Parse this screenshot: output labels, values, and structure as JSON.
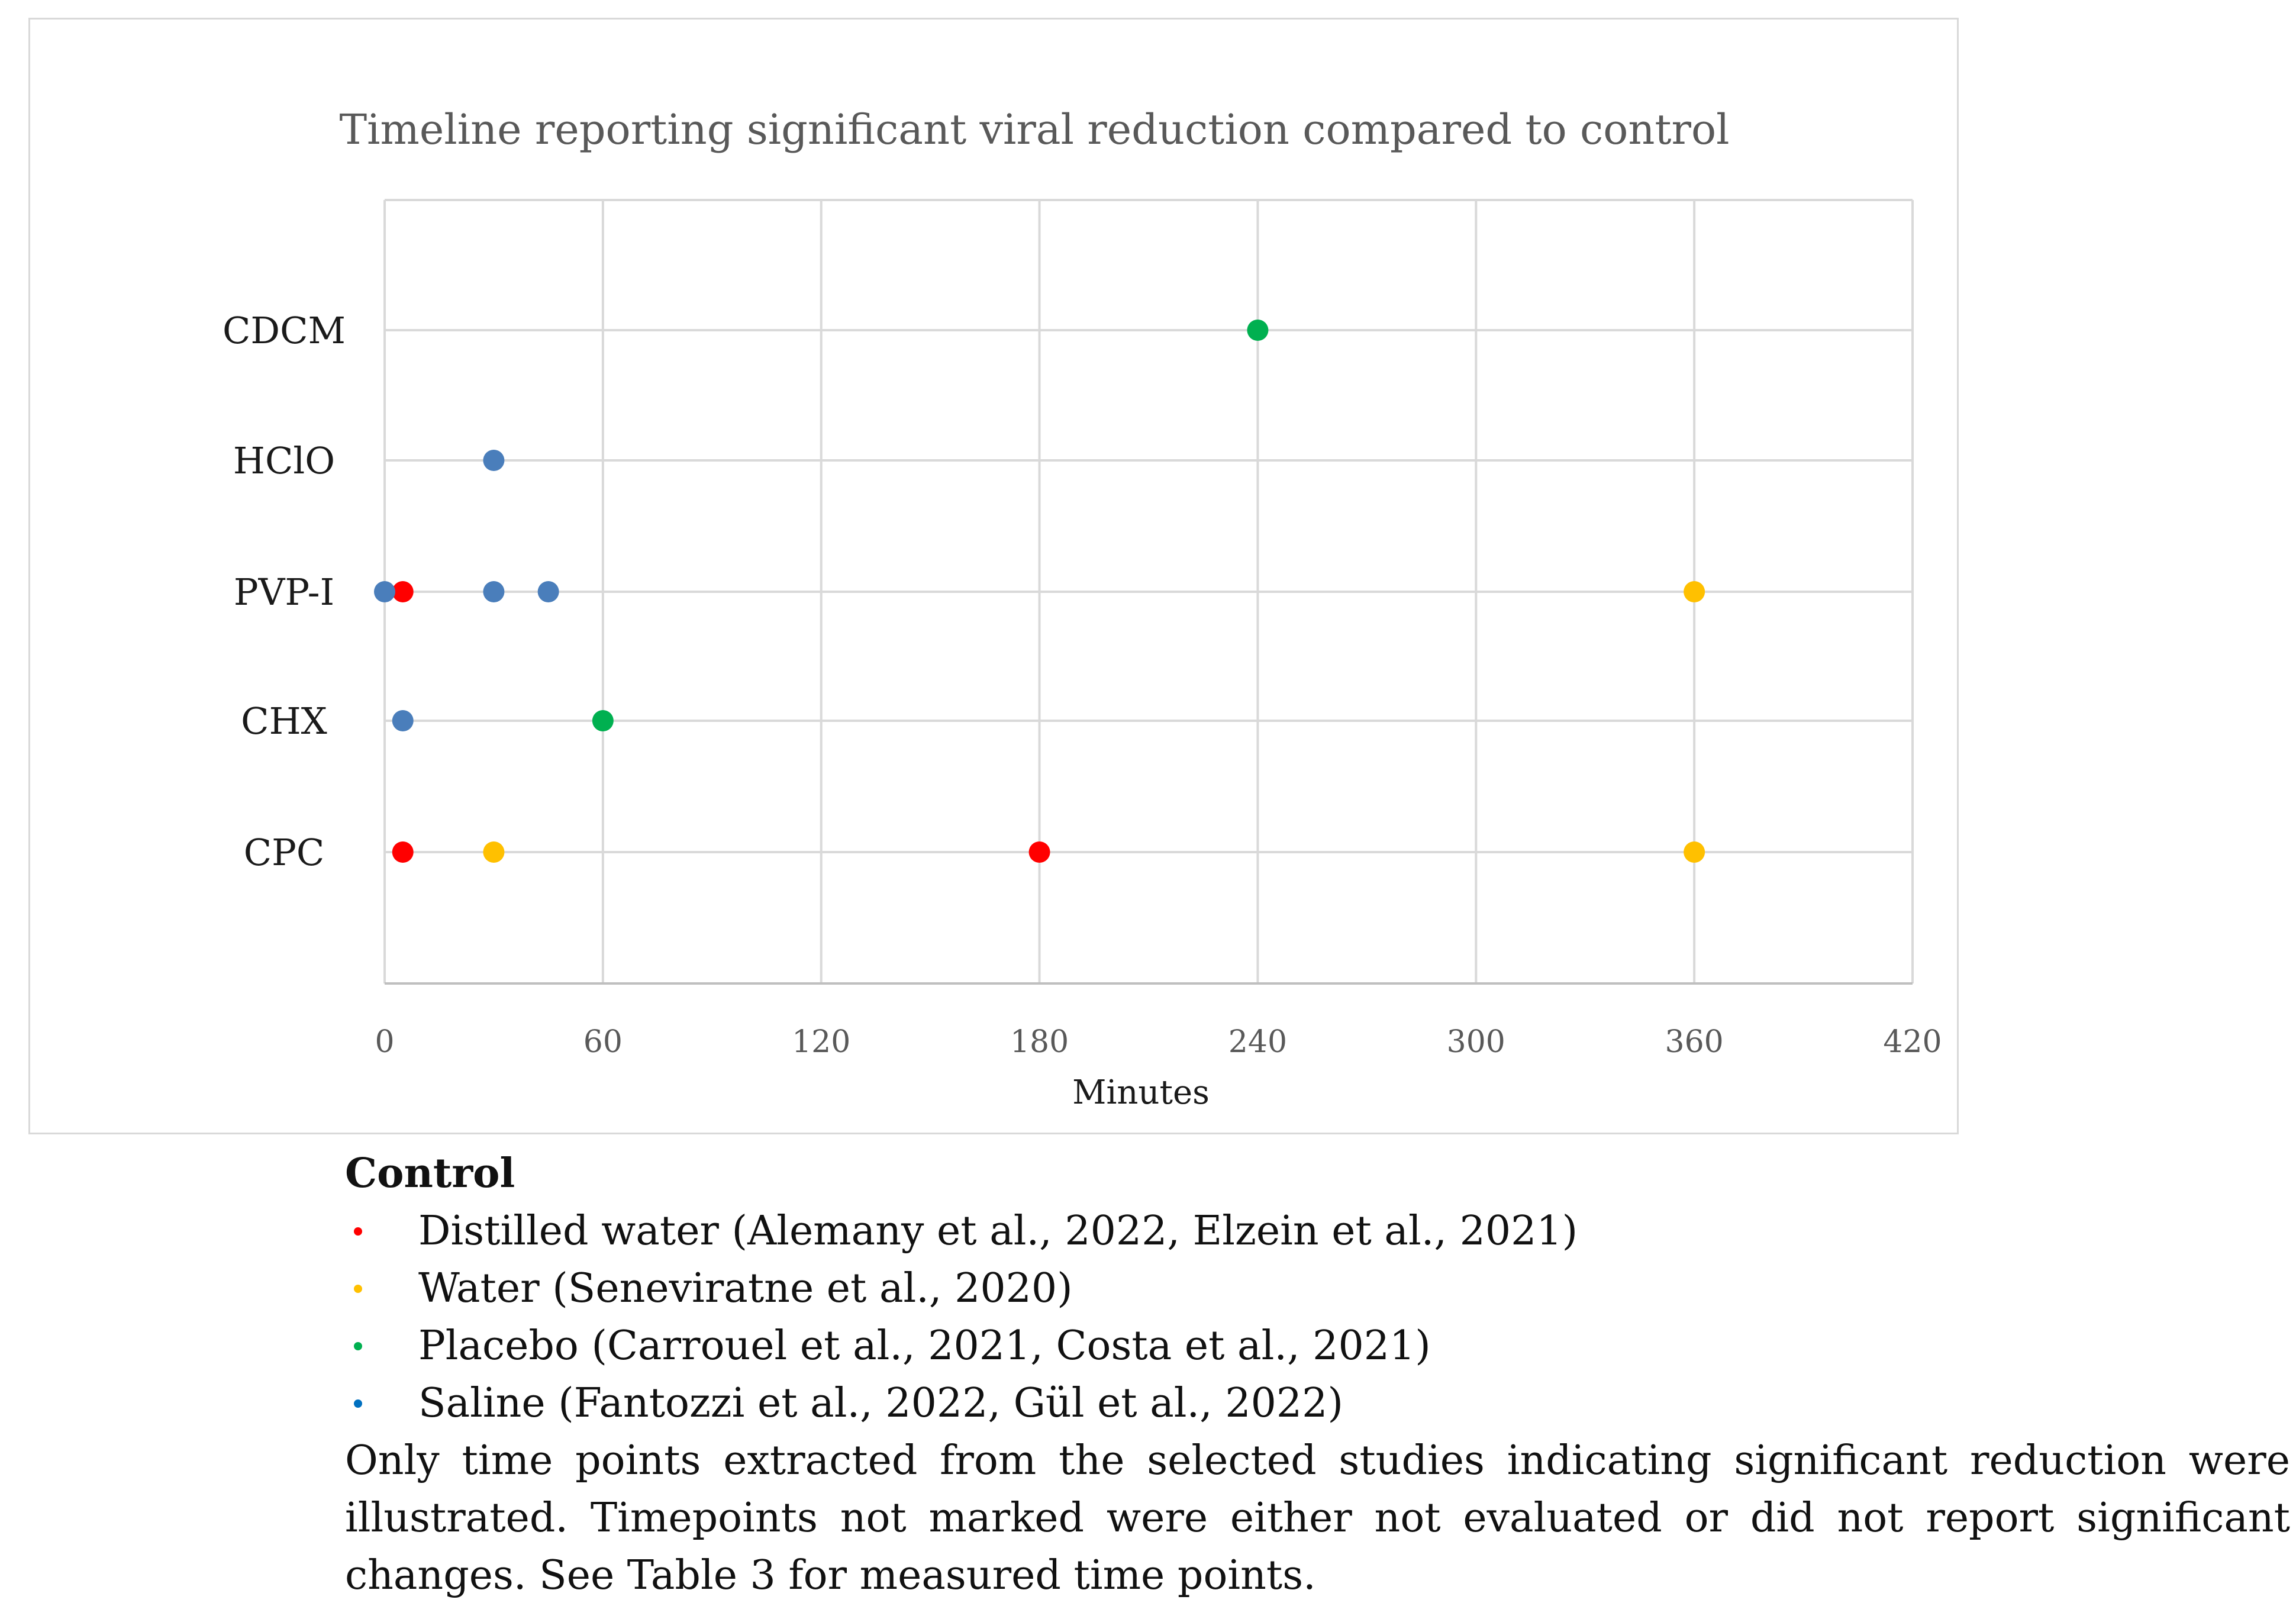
{
  "chart_data": {
    "type": "scatter",
    "title": "Timeline reporting significant viral reduction compared to control",
    "xlabel": "Minutes",
    "ylabel": "",
    "xlim": [
      0,
      420
    ],
    "xticks": [
      0,
      60,
      120,
      180,
      240,
      300,
      360,
      420
    ],
    "categories": [
      "CDCM",
      "HClO",
      "PVP-I",
      "CHX",
      "CPC"
    ],
    "grid": true,
    "series": [
      {
        "name": "Distilled water",
        "color": "#ff0000",
        "points": [
          {
            "category": "PVP-I",
            "x": 5
          },
          {
            "category": "CPC",
            "x": 5
          },
          {
            "category": "CPC",
            "x": 180
          }
        ]
      },
      {
        "name": "Water",
        "color": "#ffc000",
        "points": [
          {
            "category": "PVP-I",
            "x": 360
          },
          {
            "category": "CPC",
            "x": 30
          },
          {
            "category": "CPC",
            "x": 360
          }
        ]
      },
      {
        "name": "Placebo",
        "color": "#00b050",
        "points": [
          {
            "category": "CDCM",
            "x": 240
          },
          {
            "category": "CHX",
            "x": 60
          }
        ]
      },
      {
        "name": "Saline",
        "color": "#4a7ebb",
        "points": [
          {
            "category": "HClO",
            "x": 30
          },
          {
            "category": "PVP-I",
            "x": 0
          },
          {
            "category": "PVP-I",
            "x": 30
          },
          {
            "category": "PVP-I",
            "x": 45
          },
          {
            "category": "CHX",
            "x": 5
          }
        ]
      }
    ]
  },
  "legend": {
    "heading": "Control",
    "items": [
      {
        "label": "Distilled water (Alemany et al., 2022, Elzein et al., 2021)",
        "color": "#ff0000"
      },
      {
        "label": "Water (Seneviratne et al., 2020)",
        "color": "#ffc000"
      },
      {
        "label": "Placebo (Carrouel et al., 2021, Costa et al., 2021)",
        "color": "#00b050"
      },
      {
        "label": "Saline (Fantozzi et al., 2022, Gül et al., 2022)",
        "color": "#0070c0"
      }
    ]
  },
  "note": "Only time points extracted from the selected studies indicating significant reduction were illustrated. Timepoints not marked were either not evaluated or did not report significant changes. See Table 3 for measured time points."
}
